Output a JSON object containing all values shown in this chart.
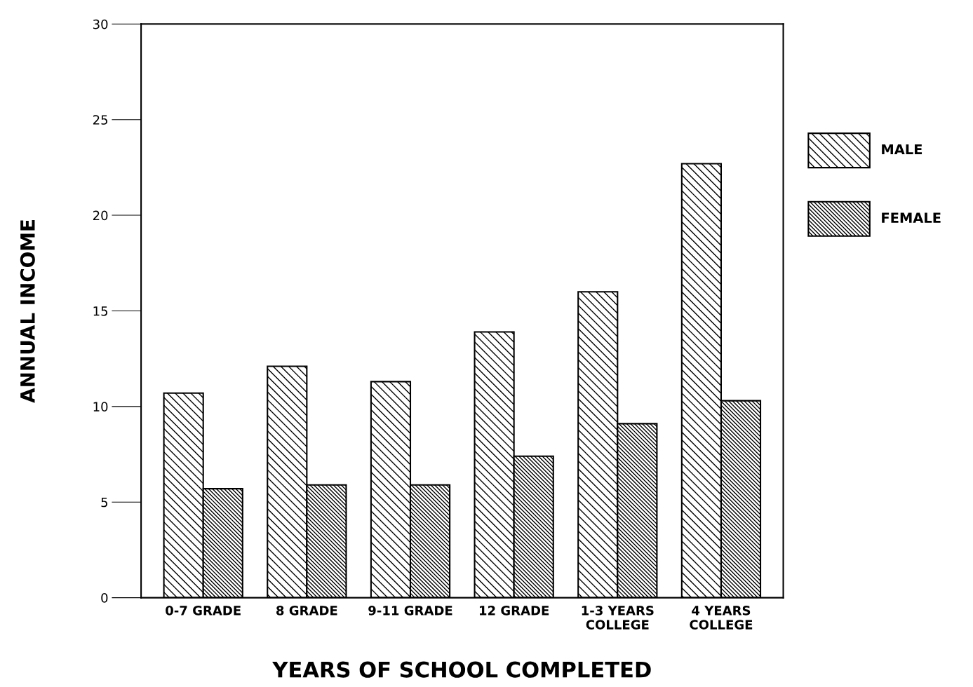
{
  "chart_data": {
    "type": "bar",
    "xlabel": "YEARS OF SCHOOL COMPLETED",
    "ylabel": "ANNUAL INCOME",
    "categories": [
      "0-7 GRADE",
      "8 GRADE",
      "9-11 GRADE",
      "12 GRADE",
      "1-3 YEARS\nCOLLEGE",
      "4 YEARS\nCOLLEGE"
    ],
    "series": [
      {
        "name": "MALE",
        "color": "#000000",
        "values": [
          10.7,
          12.1,
          11.3,
          13.9,
          16.0,
          22.7
        ]
      },
      {
        "name": "FEMALE",
        "color": "#000000",
        "values": [
          5.7,
          5.9,
          5.9,
          7.4,
          9.1,
          10.3
        ]
      }
    ],
    "ylim": [
      0,
      30
    ],
    "yticks": [
      0,
      5,
      10,
      15,
      20,
      25,
      30
    ],
    "grid": false,
    "legend": "right"
  }
}
